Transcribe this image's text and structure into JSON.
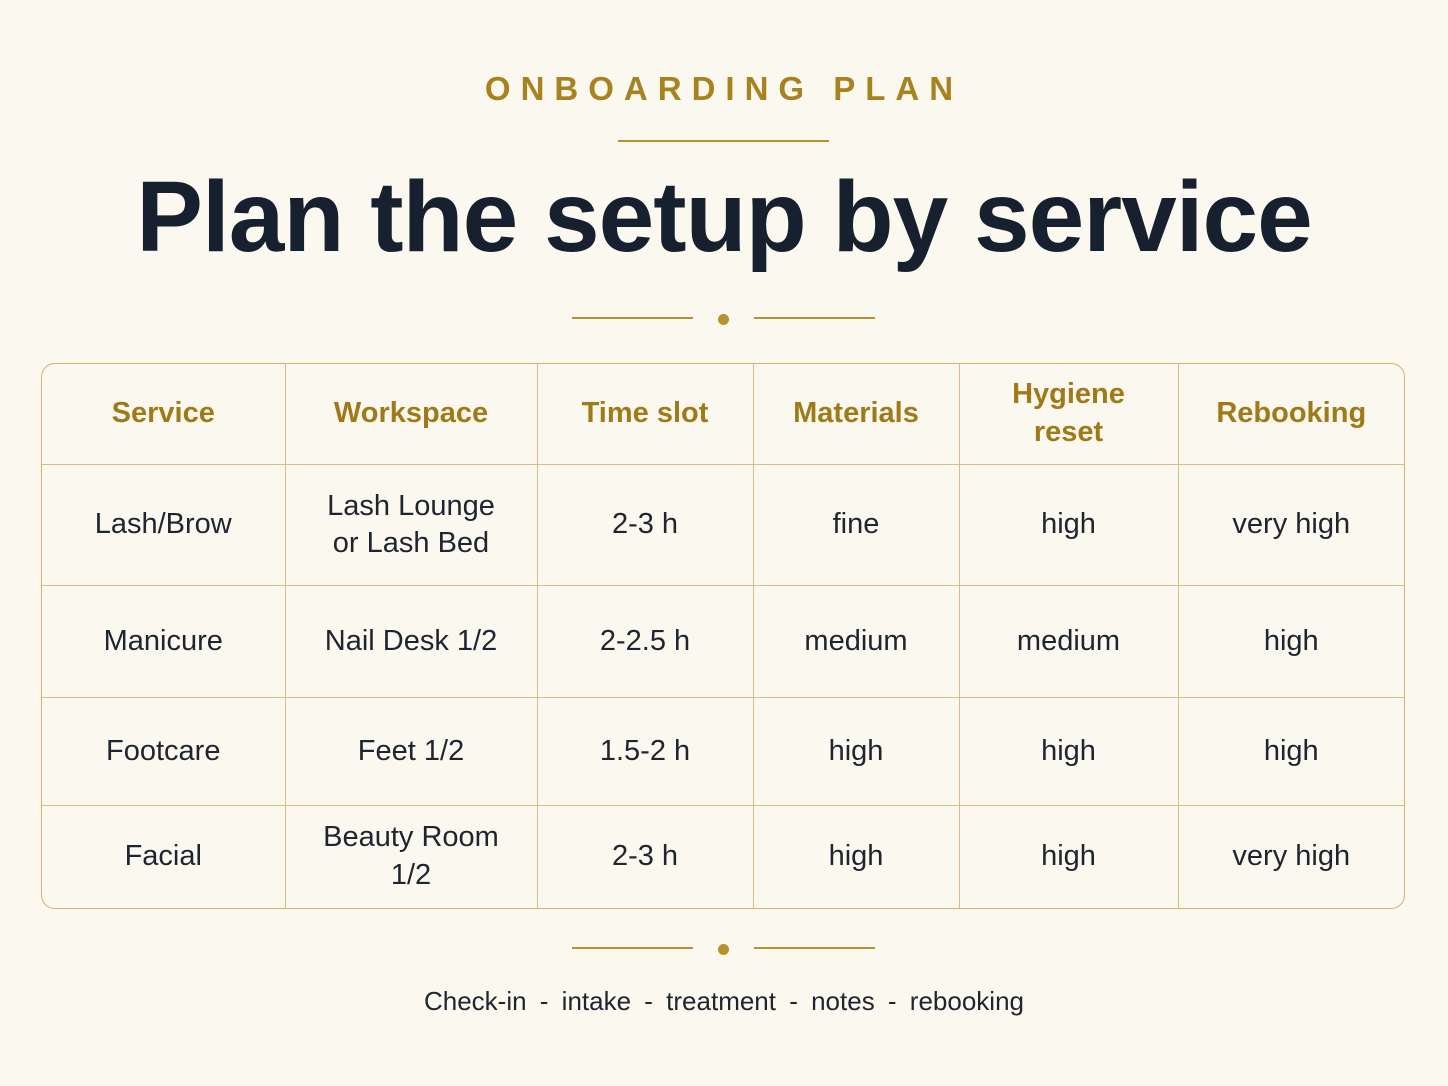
{
  "header": {
    "eyebrow": "ONBOARDING PLAN",
    "title": "Plan the setup by service"
  },
  "table": {
    "columns": [
      "Service",
      "Workspace",
      "Time slot",
      "Materials",
      "Hygiene reset",
      "Rebooking"
    ],
    "rows": [
      [
        "Lash/Brow",
        "Lash Lounge or Lash Bed",
        "2-3 h",
        "fine",
        "high",
        "very high"
      ],
      [
        "Manicure",
        "Nail Desk 1/2",
        "2-2.5 h",
        "medium",
        "medium",
        "high"
      ],
      [
        "Footcare",
        "Feet 1/2",
        "1.5-2 h",
        "high",
        "high",
        "high"
      ],
      [
        "Facial",
        "Beauty Room 1/2",
        "2-3 h",
        "high",
        "high",
        "very high"
      ]
    ]
  },
  "footer": {
    "text": "Check-in  -  intake  -  treatment  -  notes  -  rebooking"
  }
}
